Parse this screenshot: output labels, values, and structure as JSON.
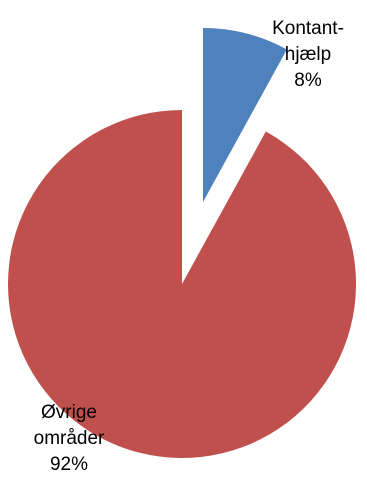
{
  "chart_data": {
    "type": "pie",
    "exploded": true,
    "categories": [
      "Kontanthjælp",
      "Øvrige områder"
    ],
    "values": [
      8,
      92
    ],
    "unit": "%",
    "colors": [
      "#4f81bd",
      "#c0504d"
    ],
    "data_labels": [
      {
        "lines": [
          "Kontant-",
          "hjælp",
          "8%"
        ]
      },
      {
        "lines": [
          "Øvrige",
          "områder",
          "92%"
        ]
      }
    ],
    "title": "",
    "legend": "none"
  }
}
